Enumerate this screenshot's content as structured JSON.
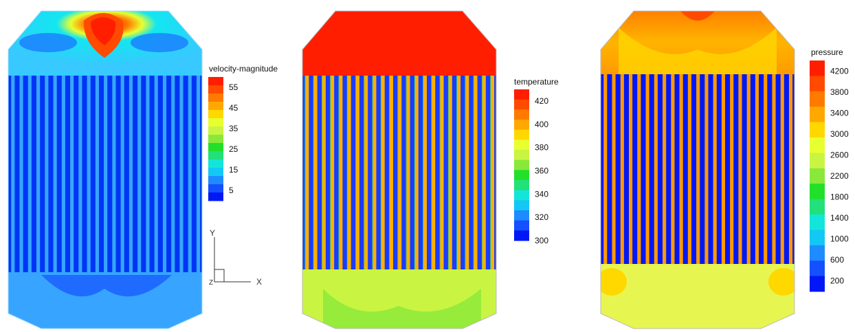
{
  "chart_data": [
    {
      "type": "heatmap",
      "title": "velocity-magnitude",
      "colorbar_ticks": [
        55,
        45,
        35,
        25,
        15,
        5
      ],
      "colorbar_min": 0,
      "colorbar_max": 60,
      "regions": {
        "top_plenum": "5-60",
        "tube_bank": "5-15",
        "bottom_plenum": "10-20"
      },
      "axes_triad": {
        "y": "Y",
        "x": "X",
        "z": "Z"
      }
    },
    {
      "type": "heatmap",
      "title": "temperature",
      "colorbar_ticks": [
        420,
        400,
        380,
        360,
        340,
        320,
        300
      ],
      "colorbar_min": 300,
      "colorbar_max": 430,
      "regions": {
        "top_plenum": "430",
        "tube_bank": "300-420",
        "bottom_plenum": "370-390"
      }
    },
    {
      "type": "heatmap",
      "title": "pressure",
      "colorbar_ticks": [
        4200,
        3800,
        3400,
        3000,
        2600,
        2200,
        1800,
        1400,
        1000,
        600,
        200
      ],
      "colorbar_min": 0,
      "colorbar_max": 4400,
      "regions": {
        "top_plenum": "3000-4400",
        "tube_bank": "200-3600",
        "bottom_plenum": "3100-3300"
      }
    }
  ],
  "colors": {
    "red": "#ff1e00",
    "orange": "#ff7a00",
    "yellow": "#e8ff30",
    "green": "#22e02a",
    "cyan": "#13e6f0",
    "sky": "#37a5ff",
    "blue": "#0018f5"
  }
}
